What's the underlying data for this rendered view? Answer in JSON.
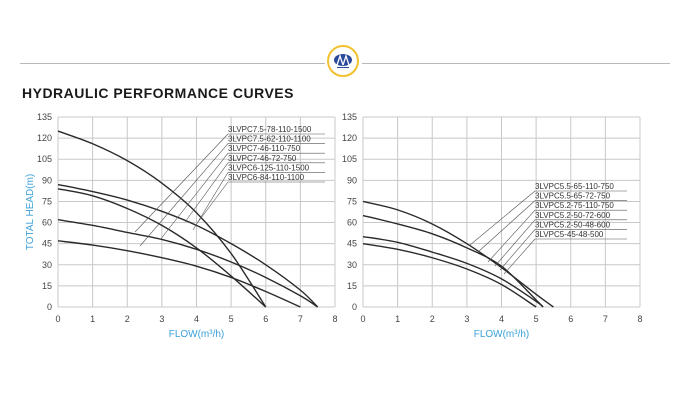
{
  "header": {
    "title": "HYDRAULIC PERFORMANCE CURVES",
    "logo_icon": "company-logo"
  },
  "colors": {
    "axis_label": "#3aa0d8",
    "curve": "#2a2a2a",
    "grid": "#c8c8c8",
    "logo_ring": "#f2c12e"
  },
  "chart_data": [
    {
      "type": "line",
      "xlabel": "FLOW(m³/h)",
      "ylabel": "TOTAL HEAD(m)",
      "xlim": [
        0,
        8
      ],
      "ylim": [
        0,
        135
      ],
      "xticks": [
        "0",
        "1",
        "2",
        "3",
        "4",
        "5",
        "6",
        "7",
        "8"
      ],
      "yticks": [
        "0",
        "15",
        "30",
        "45",
        "60",
        "75",
        "90",
        "105",
        "120",
        "135"
      ],
      "grid": true,
      "legend_labels": [
        "3LVPC7.5-78-110-1500",
        "3LVPC7.5-62-110-1100",
        "3LVPC7-46-110-750",
        "3LVPC7-46-72-750",
        "3LVPC6-125-110-1500",
        "3LVPC6-84-110-1100"
      ],
      "series": [
        {
          "x": [
            0,
            1,
            2,
            3,
            4,
            5,
            6
          ],
          "y": [
            125,
            116,
            104,
            88,
            67,
            38,
            0
          ]
        },
        {
          "x": [
            0,
            1,
            2,
            3,
            4,
            5,
            6,
            7,
            7.5
          ],
          "y": [
            87,
            82,
            76,
            68,
            58,
            45,
            30,
            12,
            0
          ]
        },
        {
          "x": [
            0,
            1,
            2,
            3,
            4,
            5,
            6
          ],
          "y": [
            84,
            79,
            70,
            58,
            42,
            22,
            0
          ]
        },
        {
          "x": [
            0,
            1,
            2,
            3,
            4,
            5,
            6,
            7,
            7.5
          ],
          "y": [
            62,
            58,
            53,
            48,
            41,
            32,
            21,
            8,
            0
          ]
        },
        {
          "x": [
            0,
            1,
            2,
            3,
            4,
            5,
            6,
            7
          ],
          "y": [
            47,
            44,
            40,
            35,
            29,
            21,
            11,
            0
          ]
        }
      ]
    },
    {
      "type": "line",
      "xlabel": "FLOW(m³/h)",
      "ylabel": "",
      "xlim": [
        0,
        8
      ],
      "ylim": [
        0,
        135
      ],
      "xticks": [
        "0",
        "1",
        "2",
        "3",
        "4",
        "5",
        "6",
        "7",
        "8"
      ],
      "yticks": [
        "0",
        "15",
        "30",
        "45",
        "60",
        "75",
        "90",
        "105",
        "120",
        "135"
      ],
      "grid": true,
      "legend_labels": [
        "3LVPC5.5-65-110-750",
        "3LVPC5.5-65-72-750",
        "3LVPC5.2-75-110-750",
        "3LVPC5.2-50-72-600",
        "3LVPC5.2-50-48-600",
        "3LVPC5-45-48-500"
      ],
      "series": [
        {
          "x": [
            0,
            1,
            2,
            3,
            4,
            5,
            5.5
          ],
          "y": [
            75,
            69,
            59,
            45,
            28,
            9,
            0
          ]
        },
        {
          "x": [
            0,
            1,
            2,
            3,
            4,
            5,
            5.2
          ],
          "y": [
            65,
            59,
            52,
            42,
            29,
            5,
            0
          ]
        },
        {
          "x": [
            0,
            1,
            2,
            3,
            4,
            5,
            5.2
          ],
          "y": [
            50,
            46,
            39,
            31,
            20,
            4,
            0
          ]
        },
        {
          "x": [
            0,
            1,
            2,
            3,
            4,
            5
          ],
          "y": [
            45,
            41,
            35,
            27,
            16,
            0
          ]
        }
      ]
    }
  ]
}
